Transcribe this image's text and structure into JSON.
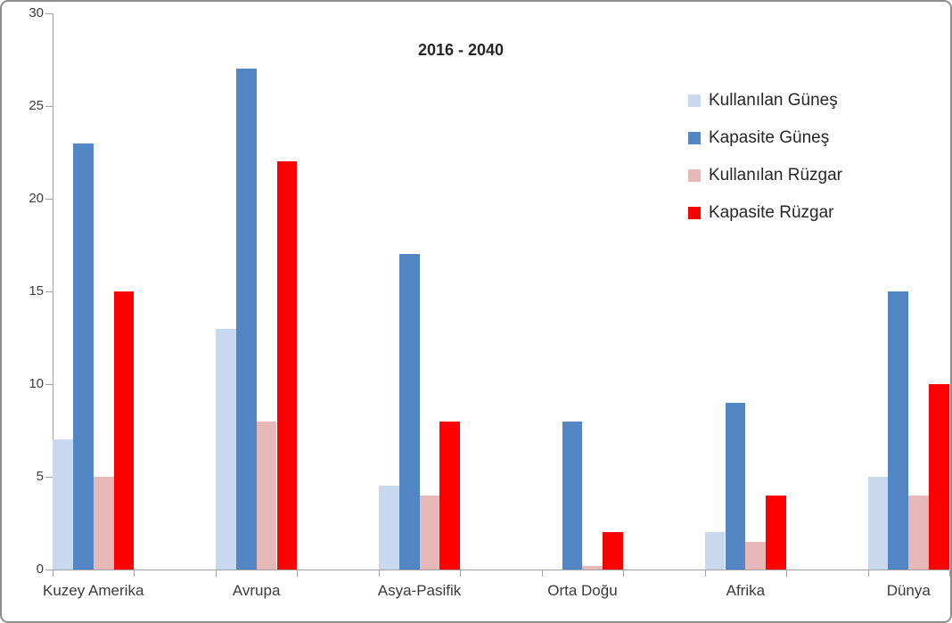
{
  "chart_data": {
    "type": "bar",
    "title": "2016 - 2040",
    "categories": [
      "Kuzey Amerika",
      "Avrupa",
      "Asya-Pasifik",
      "Orta Doğu",
      "Afrika",
      "Dünya"
    ],
    "series": [
      {
        "name": "Kullanılan Güneş",
        "color": "#c8d9ef",
        "values": [
          7,
          13,
          4.5,
          0,
          2,
          5
        ]
      },
      {
        "name": "Kapasite Güneş",
        "color": "#5286c5",
        "values": [
          23,
          27,
          17,
          8,
          9,
          15
        ]
      },
      {
        "name": "Kullanılan Rüzgar",
        "color": "#e6b8b7",
        "values": [
          5,
          8,
          4,
          0.2,
          1.5,
          4
        ]
      },
      {
        "name": "Kapasite Rüzgar",
        "color": "#ff0000",
        "values": [
          15,
          22,
          8,
          2,
          4,
          10
        ]
      }
    ],
    "ylim": [
      0,
      30
    ],
    "yticks": [
      0,
      5,
      10,
      15,
      20,
      25,
      30
    ],
    "xlabel": "",
    "ylabel": "",
    "grid": false,
    "legend_position": "right",
    "axis_color": "#a0a0a0"
  }
}
